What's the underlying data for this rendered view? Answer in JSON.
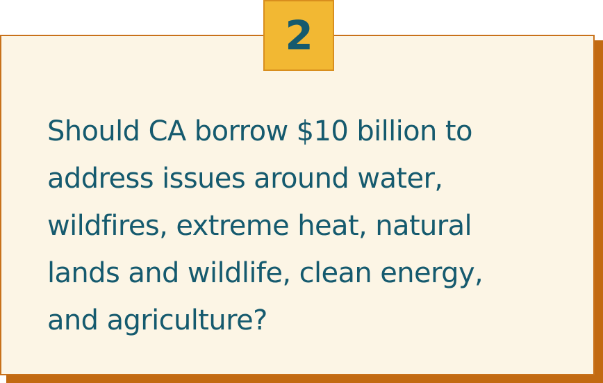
{
  "badge": {
    "number": "2"
  },
  "question": {
    "lines": [
      "Should CA borrow $10 billion to",
      "address issues around water,",
      "wildfires, extreme heat, natural",
      "lands and wildlife, clean energy,",
      "and agriculture?"
    ]
  },
  "colors": {
    "card_background": "#fcf5e5",
    "card_border": "#c8711a",
    "card_shadow": "#c26a12",
    "badge_background": "#f2b833",
    "text": "#155a6e"
  }
}
